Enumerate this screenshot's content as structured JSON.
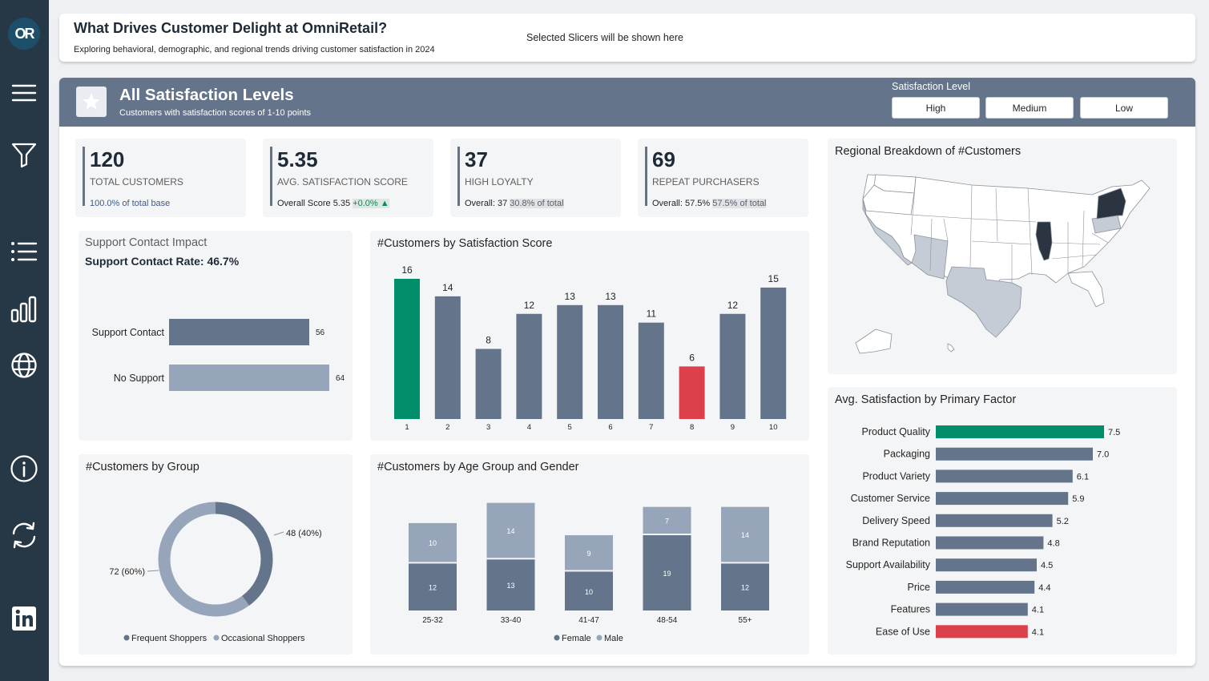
{
  "sidebar": {
    "logo_text": "OR",
    "icons": [
      "menu-icon",
      "filter-icon",
      "list-icon",
      "bar-chart-icon",
      "globe-icon",
      "info-icon",
      "refresh-icon",
      "linkedin-icon"
    ]
  },
  "header": {
    "title": "What Drives Customer Delight at OmniRetail?",
    "subtitle": "Exploring behavioral, demographic, and regional trends driving customer satisfaction in 2024",
    "slicer_placeholder": "Selected Slicers will be shown here"
  },
  "banner": {
    "title": "All Satisfaction Levels",
    "subtitle": "Customers with satisfaction scores of 1-10 points",
    "slicer_label": "Satisfaction Level",
    "slicer_options": [
      "High",
      "Medium",
      "Low"
    ]
  },
  "kpis": [
    {
      "value": "120",
      "label": "TOTAL CUSTOMERS",
      "foot_a": "100.0% of total base",
      "foot_b": ""
    },
    {
      "value": "5.35",
      "label": "AVG. SATISFACTION SCORE",
      "foot_a": "Overall Score 5.35 ",
      "foot_b": "+0.0% ▲"
    },
    {
      "value": "37",
      "label": "HIGH LOYALTY",
      "foot_a": "Overall: 37 ",
      "foot_b": "30.8% of total"
    },
    {
      "value": "69",
      "label": "REPEAT PURCHASERS",
      "foot_a": "Overall: 57.5% ",
      "foot_b": "57.5% of total"
    }
  ],
  "colors": {
    "slate": "#64748b",
    "light_slate": "#97a5bb",
    "green": "#008f6a",
    "red": "#dc404b",
    "map_dark": "#2b3542",
    "map_mid": "#c5ccd6"
  },
  "chart_data": [
    {
      "id": "support",
      "type": "bar",
      "title": "Support Contact Impact",
      "subtitle": "Support Contact Rate: 46.7%",
      "orientation": "horizontal",
      "categories": [
        "Support Contact",
        "No Support"
      ],
      "values": [
        56,
        64
      ]
    },
    {
      "id": "score",
      "type": "bar",
      "title": "#Customers by Satisfaction Score",
      "categories": [
        "1",
        "2",
        "3",
        "4",
        "5",
        "6",
        "7",
        "8",
        "9",
        "10"
      ],
      "values": [
        16,
        14,
        8,
        12,
        13,
        13,
        11,
        6,
        12,
        15
      ],
      "highlight": {
        "1": "green",
        "8": "red"
      }
    },
    {
      "id": "group",
      "type": "pie",
      "title": "#Customers by Group",
      "categories": [
        "Frequent Shoppers",
        "Occasional Shoppers"
      ],
      "values": [
        48,
        72
      ],
      "labels": [
        "48 (40%)",
        "72 (60%)"
      ]
    },
    {
      "id": "age",
      "type": "bar",
      "stacked": true,
      "title": "#Customers by Age Group and Gender",
      "categories": [
        "25-32",
        "33-40",
        "41-47",
        "48-54",
        "55+"
      ],
      "series": [
        {
          "name": "Female",
          "values": [
            12,
            13,
            10,
            19,
            12
          ]
        },
        {
          "name": "Male",
          "values": [
            10,
            14,
            9,
            7,
            14
          ]
        }
      ]
    },
    {
      "id": "factor",
      "type": "bar",
      "orientation": "horizontal",
      "title": "Avg. Satisfaction by Primary Factor",
      "categories": [
        "Product Quality",
        "Packaging",
        "Product Variety",
        "Customer Service",
        "Delivery Speed",
        "Brand Reputation",
        "Support Availability",
        "Price",
        "Features",
        "Ease of Use"
      ],
      "values": [
        7.5,
        7.0,
        6.1,
        5.9,
        5.2,
        4.8,
        4.5,
        4.4,
        4.1,
        4.1
      ],
      "highlight": {
        "Product Quality": "green",
        "Ease of Use": "red"
      }
    }
  ],
  "map": {
    "title": "Regional Breakdown of #Customers"
  }
}
